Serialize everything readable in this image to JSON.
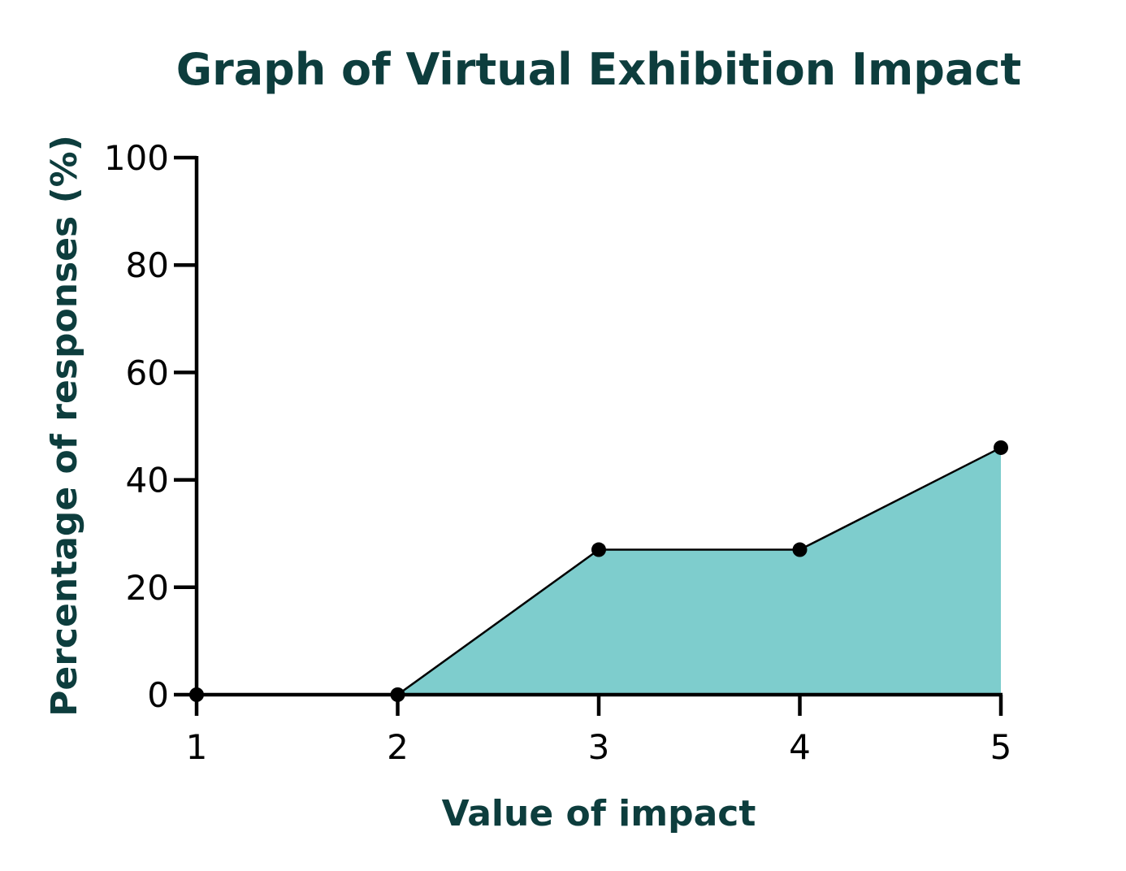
{
  "chart_data": {
    "type": "area",
    "title": "Graph of Virtual  Exhibition Impact",
    "xlabel": "Value of impact",
    "ylabel": "Percentage of responses (%)",
    "x": [
      1,
      2,
      3,
      4,
      5
    ],
    "x_tick_labels": [
      "1",
      "2",
      "3",
      "4",
      "5"
    ],
    "y_ticks": [
      0,
      20,
      40,
      60,
      80,
      100
    ],
    "y_tick_labels": [
      "0",
      "20",
      "40",
      "60",
      "80",
      "100"
    ],
    "ylim": [
      0,
      100
    ],
    "xlim": [
      1,
      5
    ],
    "series": [
      {
        "values": [
          0,
          0,
          27,
          27,
          46
        ]
      }
    ],
    "grid": false,
    "legend": "none"
  },
  "colors": {
    "title": "#0d3d3d",
    "axis_label": "#0d3d3d",
    "area_fill": "#7ecdcd",
    "line": "#000000",
    "axis": "#000000",
    "marker": "#000000"
  }
}
